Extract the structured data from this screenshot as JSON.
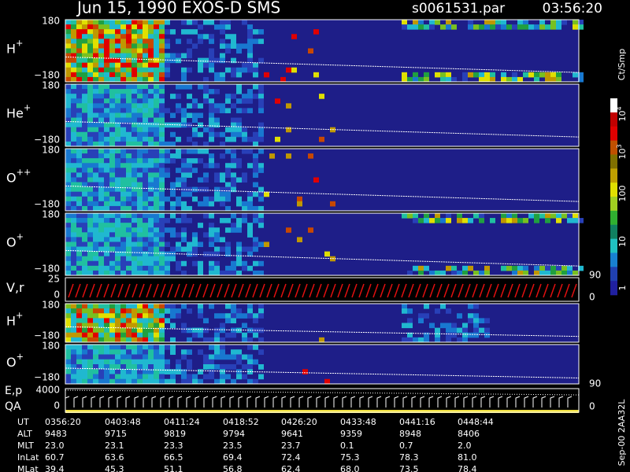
{
  "header": {
    "title": "Jun 15, 1990   EXOS-D SMS",
    "file": "s0061531.par",
    "time": "03:56:20"
  },
  "panels": [
    {
      "label": "H",
      "sup": "+",
      "left_ticks": [
        "180",
        "−180"
      ]
    },
    {
      "label": "He",
      "sup": "+",
      "left_ticks": [
        "180",
        "−180"
      ]
    },
    {
      "label": "O",
      "sup": "++",
      "left_ticks": [
        "180",
        "−180"
      ]
    },
    {
      "label": "O",
      "sup": "+",
      "left_ticks": [
        "180",
        "−180"
      ]
    },
    {
      "label": "V,r",
      "left_ticks": [
        "25",
        "0"
      ],
      "right_ticks": [
        "90",
        "0"
      ]
    },
    {
      "label": "H",
      "sup": "+",
      "left_ticks": [
        "180",
        "−180"
      ]
    },
    {
      "label": "O",
      "sup": "+",
      "left_ticks": [
        "180",
        "−180"
      ],
      "right_ticks": [
        "90"
      ]
    },
    {
      "label": "E,p",
      "label2": "QA",
      "left_ticks": [
        "4000",
        "0"
      ],
      "right_ticks": [
        "0"
      ]
    }
  ],
  "colorbar": {
    "unit": "Ct/Smp",
    "labels": [
      {
        "base": "10",
        "exp": "4"
      },
      {
        "base": "10",
        "exp": "3"
      },
      {
        "base": "100"
      },
      {
        "base": "10"
      },
      {
        "base": "1"
      }
    ]
  },
  "footer_note": "Sep-00  2AA32L",
  "table": {
    "rows": [
      [
        "UT",
        "0356:20",
        "0403:48",
        "0411:24",
        "0418:52",
        "0426:20",
        "0433:48",
        "0441:16",
        "0448:44"
      ],
      [
        "ALT",
        "9483",
        "9715",
        "9819",
        "9794",
        "9641",
        "9359",
        "8948",
        "8406"
      ],
      [
        "MLT",
        "23.0",
        "23.1",
        "23.3",
        "23.5",
        "23.7",
        "0.1",
        "0.7",
        "2.0"
      ],
      [
        "InLat",
        "60.7",
        "63.6",
        "66.5",
        "69.4",
        "72.4",
        "75.3",
        "78.3",
        "81.0"
      ],
      [
        "MLat",
        "39.4",
        "45.3",
        "51.1",
        "56.8",
        "62.4",
        "68.0",
        "73.5",
        "78.4"
      ]
    ]
  }
}
